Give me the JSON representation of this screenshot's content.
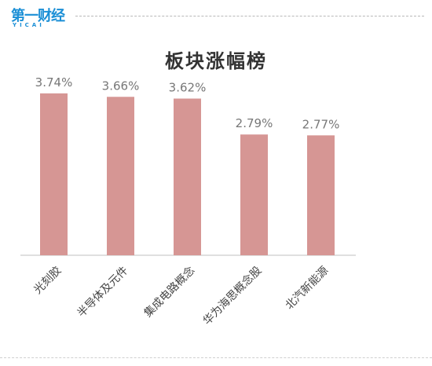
{
  "logo": {
    "main": "第一财经",
    "sub": "YICAI",
    "color": "#1b8fd6"
  },
  "chart_data": {
    "type": "bar",
    "title": "板块涨幅榜",
    "categories": [
      "光刻胶",
      "半导体及元件",
      "集成电路概念",
      "华为海思概念股",
      "北汽新能源"
    ],
    "values": [
      3.74,
      3.66,
      3.62,
      2.79,
      2.77
    ],
    "value_labels": [
      "3.74%",
      "3.66%",
      "3.62%",
      "2.79%",
      "2.77%"
    ],
    "unit": "%",
    "ylim": [
      0,
      4.5
    ],
    "grid": false,
    "legend": "none",
    "bar_color": "#d69694",
    "xlabel": "",
    "ylabel": ""
  }
}
